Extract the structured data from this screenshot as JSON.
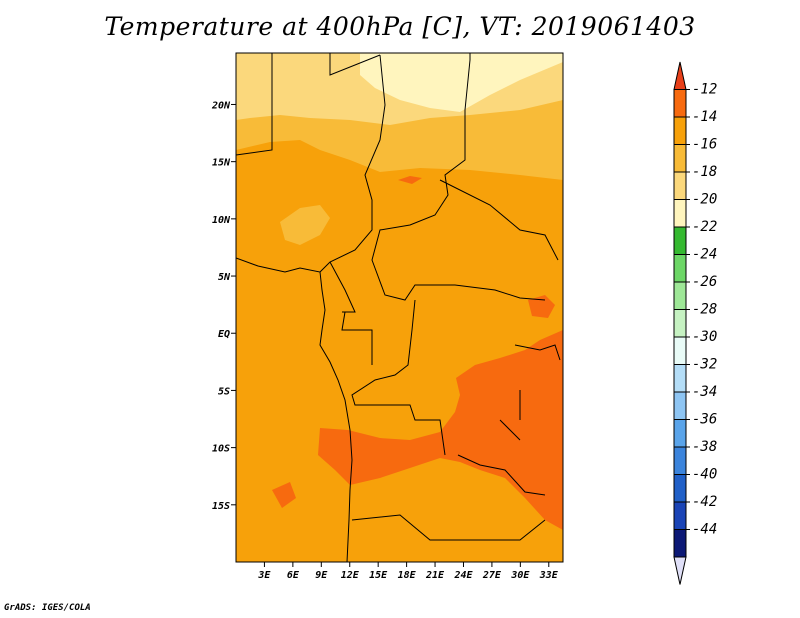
{
  "chart_data": {
    "type": "heatmap",
    "title": "Temperature at 400hPa [C], VT: 2019061403",
    "variable": "Temperature",
    "units": "C",
    "pressure_level": "400hPa",
    "valid_time": "2019061403",
    "x_ticks": [
      "3E",
      "6E",
      "9E",
      "12E",
      "15E",
      "18E",
      "21E",
      "24E",
      "27E",
      "30E",
      "33E"
    ],
    "x_tick_values": [
      3,
      6,
      9,
      12,
      15,
      18,
      21,
      24,
      27,
      30,
      33
    ],
    "y_ticks": [
      "20N",
      "15N",
      "10N",
      "5N",
      "EQ",
      "5S",
      "10S",
      "15S"
    ],
    "y_tick_values": [
      20,
      15,
      10,
      5,
      0,
      -5,
      -10,
      -15
    ],
    "lon_range": [
      0,
      34.5
    ],
    "lat_range": [
      -20,
      24.5
    ],
    "colorbar": {
      "labels": [
        "-12",
        "-14",
        "-16",
        "-18",
        "-20",
        "-22",
        "-24",
        "-26",
        "-28",
        "-30",
        "-32",
        "-34",
        "-36",
        "-38",
        "-40",
        "-42",
        "-44"
      ],
      "levels": [
        -12,
        -14,
        -16,
        -18,
        -20,
        -22,
        -24,
        -26,
        -28,
        -30,
        -32,
        -34,
        -36,
        -38,
        -40,
        -42,
        -44
      ],
      "colors": [
        "#e8401a",
        "#f76a0f",
        "#f7a10a",
        "#f8bb38",
        "#fbd87c",
        "#fff5be",
        "#35b931",
        "#6cd666",
        "#9ee797",
        "#c6f2c2",
        "#e9fbf7",
        "#b4ddf7",
        "#8ec5f3",
        "#5aa4ea",
        "#3b84dc",
        "#2060c8",
        "#1a44b6",
        "#0c1976",
        "#e0e0f8"
      ]
    },
    "fields": [
      {
        "range": "-16 to -14",
        "color": "#f7a10a",
        "description": "dominant"
      },
      {
        "range": "-18 to -16",
        "color": "#f8bb38"
      },
      {
        "range": "-20 to -18",
        "color": "#fbd87c"
      },
      {
        "range": "-22 to -20",
        "color": "#fff5be"
      },
      {
        "range": "-14 to -12",
        "color": "#f76a0f"
      }
    ]
  },
  "credit": "GrADS: IGES/COLA"
}
